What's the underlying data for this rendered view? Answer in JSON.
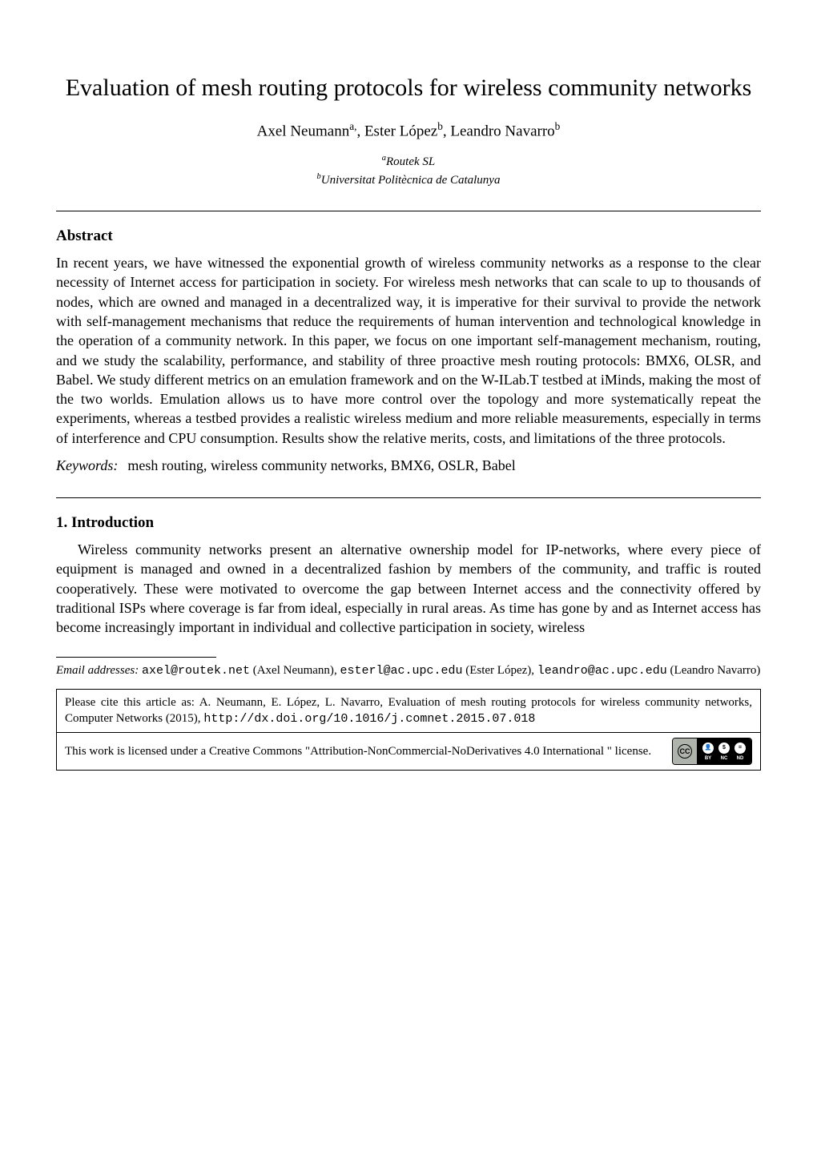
{
  "title": "Evaluation of mesh routing protocols for wireless community networks",
  "authors_html": "Axel Neumann<span class='sup'>a,</span>, Ester López<span class='sup'>b</span>, Leandro Navarro<span class='sup'>b</span>",
  "affiliations": {
    "a": "Routek SL",
    "b": "Universitat Politècnica de Catalunya"
  },
  "abstract_heading": "Abstract",
  "abstract": "In recent years, we have witnessed the exponential growth of wireless community networks as a response to the clear necessity of Internet access for participation in society. For wireless mesh networks that can scale to up to thousands of nodes, which are owned and managed in a decentralized way, it is imperative for their survival to provide the network with self-management mechanisms that reduce the requirements of human intervention and technological knowledge in the operation of a community network. In this paper, we focus on one important self-management mechanism, routing, and we study the scalability, performance, and stability of three proactive mesh routing protocols: BMX6, OLSR, and Babel. We study different metrics on an emulation framework and on the W-ILab.T testbed at iMinds, making the most of the two worlds. Emulation allows us to have more control over the topology and more systematically repeat the experiments, whereas a testbed provides a realistic wireless medium and more reliable measurements, especially in terms of interference and CPU consumption. Results show the relative merits, costs, and limitations of the three protocols.",
  "keywords_label": "Keywords:",
  "keywords": "mesh routing, wireless community networks, BMX6, OSLR, Babel",
  "section1_heading": "1. Introduction",
  "section1_para1": "Wireless community networks present an alternative ownership model for IP-networks, where every piece of equipment is managed and owned in a decentralized fashion by members of the community, and traffic is routed cooperatively. These were motivated to overcome the gap between Internet access and the connectivity offered by traditional ISPs where coverage is far from ideal, especially in rural areas. As time has gone by and as Internet access has become increasingly important in individual and collective participation in society, wireless",
  "footnote": {
    "label_italic": "Email addresses:",
    "parts": [
      {
        "email": "axel@routek.net",
        "name": "(Axel Neumann)"
      },
      {
        "email": "esterl@ac.upc.edu",
        "name": "(Ester López)"
      },
      {
        "email": "leandro@ac.upc.edu",
        "name": "(Leandro Navarro)"
      }
    ]
  },
  "cite": {
    "prefix": "Please cite this article as: A. Neumann, E. López, L. Navarro, Evaluation of mesh routing protocols for wireless community networks, Computer Networks (2015), ",
    "url": "http://dx.doi.org/10.1016/j.comnet.2015.07.018"
  },
  "license": {
    "text": "This work is licensed under a Creative Commons \"Attribution-NonCommercial-NoDerivatives 4.0 International \" license.",
    "badge": {
      "cc": "CC",
      "icons": [
        {
          "sym": "👤",
          "label": "BY"
        },
        {
          "sym": "$",
          "label": "NC"
        },
        {
          "sym": "=",
          "label": "ND"
        }
      ]
    }
  },
  "colors": {
    "text": "#000000",
    "bg": "#ffffff",
    "rule": "#000000",
    "badge_left": "#aeb4ab",
    "badge_right": "#000000"
  },
  "typography": {
    "body_family": "Times New Roman",
    "body_size_pt": 12,
    "title_size_pt": 20,
    "footnote_size_pt": 10,
    "mono_family": "Courier New"
  }
}
